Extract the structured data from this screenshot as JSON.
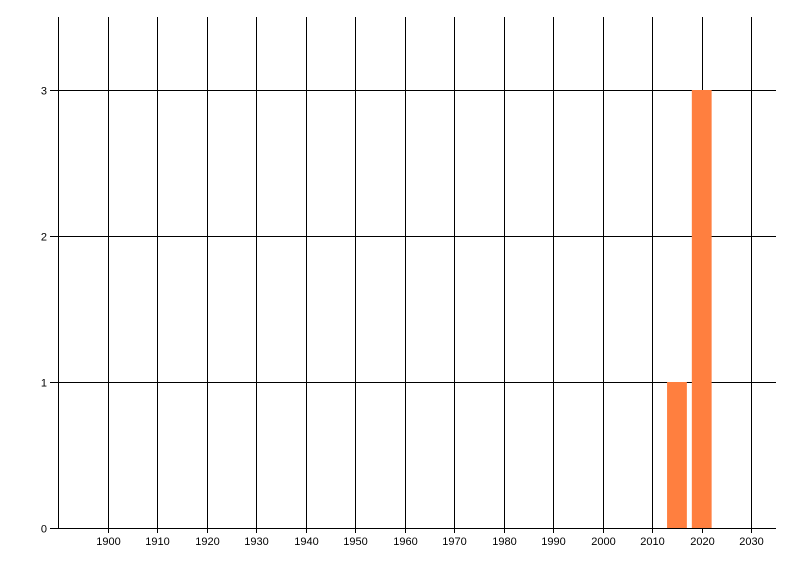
{
  "chart_data": {
    "type": "bar",
    "title": "",
    "xlabel": "",
    "ylabel": "",
    "x": [
      2015,
      2020
    ],
    "values": [
      1,
      3
    ],
    "bar_width_years": 4,
    "xlim": [
      1890,
      2035
    ],
    "ylim": [
      0,
      3.5
    ],
    "xticks": [
      1900,
      1910,
      1920,
      1930,
      1940,
      1950,
      1960,
      1970,
      1980,
      1990,
      2000,
      2010,
      2020,
      2030
    ],
    "yticks": [
      0,
      1,
      2,
      3
    ],
    "grid": true,
    "legend": "none",
    "colors": {
      "bar": "#FF7F3F",
      "grid": "#000000",
      "background": "#FFFFFF"
    }
  }
}
